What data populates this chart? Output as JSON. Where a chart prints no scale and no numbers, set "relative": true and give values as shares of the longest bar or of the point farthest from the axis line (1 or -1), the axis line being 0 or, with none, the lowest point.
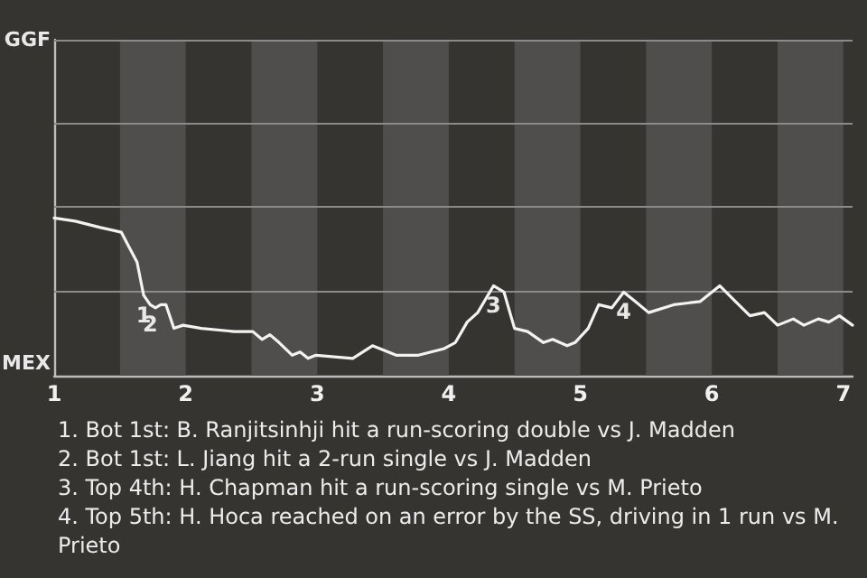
{
  "chart_data": {
    "type": "line",
    "x": [
      1.0,
      1.16,
      1.35,
      1.51,
      1.56,
      1.63,
      1.68,
      1.73,
      1.77,
      1.81,
      1.85,
      1.91,
      1.98,
      2.12,
      2.37,
      2.51,
      2.58,
      2.64,
      2.71,
      2.81,
      2.87,
      2.93,
      2.99,
      3.27,
      3.42,
      3.6,
      3.77,
      3.96,
      4.05,
      4.14,
      4.22,
      4.34,
      4.42,
      4.5,
      4.6,
      4.72,
      4.79,
      4.9,
      4.96,
      5.06,
      5.14,
      5.24,
      5.33,
      5.42,
      5.52,
      5.71,
      5.91,
      6.06,
      6.18,
      6.29,
      6.4,
      6.5,
      6.62,
      6.7,
      6.81,
      6.89,
      6.97,
      7.07
    ],
    "series": [
      {
        "color": "#f2f2f2",
        "values": [
          1,
          0.98,
          0.94,
          0.91,
          0.83,
          0.72,
          0.51,
          0.45,
          0.43,
          0.45,
          0.45,
          0.3,
          0.32,
          0.3,
          0.28,
          0.28,
          0.23,
          0.26,
          0.21,
          0.13,
          0.15,
          0.11,
          0.13,
          0.11,
          0.19,
          0.13,
          0.13,
          0.17,
          0.21,
          0.34,
          0.4,
          0.57,
          0.53,
          0.3,
          0.28,
          0.21,
          0.23,
          0.19,
          0.21,
          0.3,
          0.45,
          0.43,
          0.53,
          0.47,
          0.4,
          0.45,
          0.47,
          0.57,
          0.47,
          0.38,
          0.4,
          0.32,
          0.36,
          0.32,
          0.36,
          0.34,
          0.38,
          0.32
        ]
      }
    ],
    "relative": true,
    "xlim": [
      1,
      7.07
    ],
    "xticks": [
      1,
      2,
      3,
      4,
      5,
      6,
      7
    ],
    "ref_lines": [
      {
        "axis": "y",
        "value": 0.53,
        "color": "#8a8a8a"
      },
      {
        "axis": "y",
        "value": 1.07,
        "color": "#8a8a8a"
      },
      {
        "axis": "y",
        "value": 1.6,
        "color": "#8a8a8a"
      },
      {
        "axis": "y",
        "value": 2.13,
        "color": "#8a8a8a"
      }
    ],
    "marker": "none",
    "bands": [
      {
        "axis": "x",
        "from": 1.5,
        "to": 2,
        "color": "#4f4e4c"
      },
      {
        "axis": "x",
        "from": 2.5,
        "to": 3,
        "color": "#4f4e4c"
      },
      {
        "axis": "x",
        "from": 3.5,
        "to": 4,
        "color": "#4f4e4c"
      },
      {
        "axis": "x",
        "from": 4.5,
        "to": 5,
        "color": "#4f4e4c"
      },
      {
        "axis": "x",
        "from": 5.5,
        "to": 6,
        "color": "#4f4e4c"
      },
      {
        "axis": "x",
        "from": 6.5,
        "to": 7,
        "color": "#4f4e4c"
      }
    ],
    "annotations": [
      "GGF",
      "MEX",
      {
        "text": "1",
        "x": 1.68,
        "y": 0.51
      },
      {
        "text": "2",
        "x": 1.73,
        "y": 0.45
      },
      {
        "text": "3",
        "x": 4.34,
        "y": 0.57
      },
      {
        "text": "4",
        "x": 5.33,
        "y": 0.53
      },
      "1. Bot 1st: B. Ranjitsinhji hit a run-scoring double vs J. Madden",
      "2. Bot 1st: L. Jiang hit a 2-run single vs J. Madden",
      "3. Top 4th: H. Chapman hit a run-scoring single vs M. Prieto",
      "4. Top 5th: H. Hoca reached on an error by the SS, driving in 1 run vs M. Prieto"
    ]
  }
}
